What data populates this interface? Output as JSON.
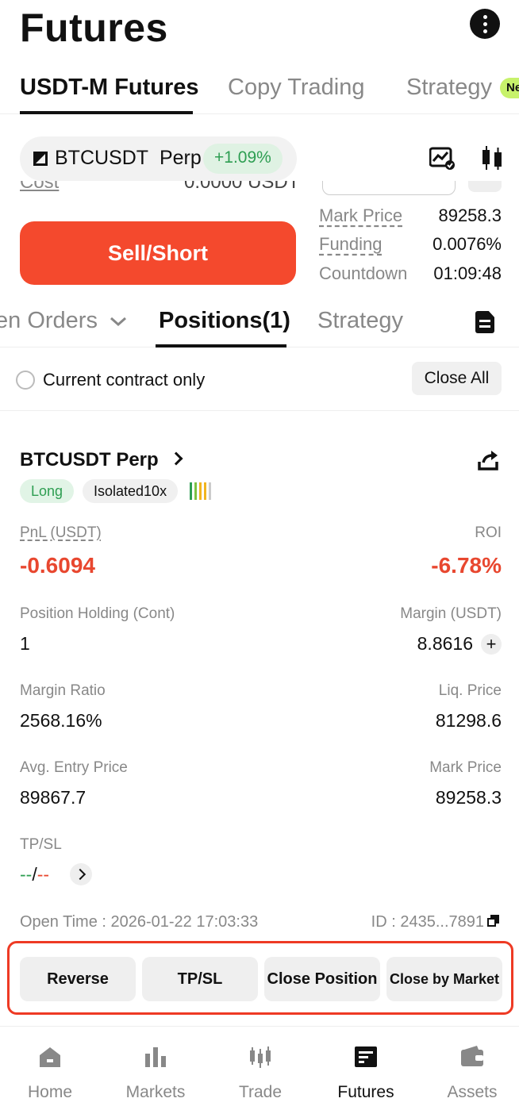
{
  "page": {
    "title": "Futures"
  },
  "top_tabs": [
    "USDT-M Futures",
    "Copy Trading",
    "Strategy"
  ],
  "new_badge": "Ne",
  "symbol": {
    "name": "BTCUSDT",
    "type": "Perp",
    "change": "+1.09%"
  },
  "cut_row": {
    "label": "Cost",
    "value": "0.0000 USDT"
  },
  "market_info": [
    {
      "label": "Mark Price",
      "value": "89258.3"
    },
    {
      "label": "Funding",
      "value": "0.0076%"
    },
    {
      "label": "Countdown",
      "value": "01:09:48"
    }
  ],
  "sell_button": "Sell/Short",
  "sub_tabs": [
    "en Orders",
    "Positions(1)",
    "Strategy"
  ],
  "filter": {
    "label": "Current contract only",
    "close_all": "Close All"
  },
  "position": {
    "symbol": "BTCUSDT Perp",
    "side": "Long",
    "margin_mode": "Isolated10x",
    "leverage_colors": [
      "#2e9e52",
      "#7cc243",
      "#f2b51f",
      "#f2b51f",
      "#cccccc"
    ],
    "pnl_label": "PnL (USDT)",
    "pnl_value": "-0.6094",
    "roi_label": "ROI",
    "roi_value": "-6.78%",
    "holding_label": "Position Holding (Cont)",
    "holding_value": "1",
    "margin_label": "Margin (USDT)",
    "margin_value": "8.8616",
    "margin_add": "+",
    "margin_ratio_label": "Margin Ratio",
    "margin_ratio_value": "2568.16%",
    "liq_label": "Liq. Price",
    "liq_value": "81298.6",
    "entry_label": "Avg. Entry Price",
    "entry_value": "89867.7",
    "mark_label": "Mark Price",
    "mark_value": "89258.3",
    "tpsl_label": "TP/SL",
    "tp_value": "--",
    "tpsl_sep": "/",
    "sl_value": "--",
    "open_time": "Open Time : 2026-01-22 17:03:33",
    "order_id": "ID : 2435...7891"
  },
  "actions": [
    "Reverse",
    "TP/SL",
    "Close Position",
    "Close by Market"
  ],
  "nav": [
    {
      "label": "Home",
      "icon": "home-icon"
    },
    {
      "label": "Markets",
      "icon": "markets-icon"
    },
    {
      "label": "Trade",
      "icon": "trade-icon"
    },
    {
      "label": "Futures",
      "icon": "futures-icon"
    },
    {
      "label": "Assets",
      "icon": "wallet-icon"
    }
  ],
  "colors": {
    "accent_red": "#f4492d",
    "loss_red": "#e8472f",
    "profit_green": "#2e9e52",
    "highlight_frame": "#ee3a24"
  }
}
